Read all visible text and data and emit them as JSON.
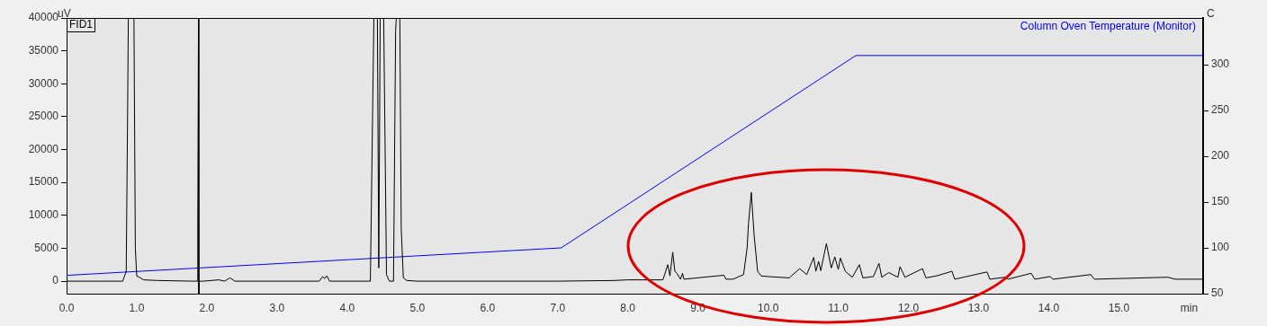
{
  "chart_data": {
    "type": "line",
    "ylabel": "uV",
    "y2label": "C",
    "xlim": [
      0,
      16.2
    ],
    "xticks": [
      {
        "value": 0,
        "label": "0.0"
      },
      {
        "value": 1,
        "label": "1.0"
      },
      {
        "value": 2,
        "label": "2.0"
      },
      {
        "value": 3,
        "label": "3.0"
      },
      {
        "value": 4,
        "label": "4.0"
      },
      {
        "value": 5,
        "label": "5.0"
      },
      {
        "value": 6,
        "label": "6.0"
      },
      {
        "value": 7,
        "label": "7.0"
      },
      {
        "value": 8,
        "label": "8.0"
      },
      {
        "value": 9,
        "label": "9.0"
      },
      {
        "value": 10,
        "label": "10.0"
      },
      {
        "value": 11,
        "label": "11.0"
      },
      {
        "value": 12,
        "label": "12.0"
      },
      {
        "value": 13,
        "label": "13.0"
      },
      {
        "value": 14,
        "label": "14.0"
      },
      {
        "value": 15,
        "label": "15.0"
      },
      {
        "value": 16,
        "label": "min"
      }
    ],
    "ylim": [
      -1900,
      40000
    ],
    "yticks": [
      0,
      5000,
      10000,
      15000,
      20000,
      25000,
      30000,
      35000,
      40000
    ],
    "y2lim": [
      50,
      351
    ],
    "y2ticks": [
      50,
      100,
      150,
      200,
      250,
      300
    ],
    "legend": false,
    "grid": false,
    "marker": "none",
    "series": [
      {
        "name": "FID1",
        "color": "#000000",
        "x": [
          0,
          0.8,
          0.85,
          0.87,
          0.88,
          0.96,
          0.98,
          1.0,
          1.05,
          1.1,
          1.3,
          1.8,
          1.86,
          1.87,
          1.88,
          1.885,
          1.89,
          1.95,
          2.17,
          2.25,
          2.33,
          2.4,
          3.6,
          3.65,
          3.68,
          3.71,
          3.75,
          4.33,
          4.36,
          4.38,
          4.43,
          4.45,
          4.47,
          4.52,
          4.56,
          4.6,
          4.66,
          4.69,
          4.7,
          4.75,
          4.77,
          4.8,
          4.85,
          5.0,
          6.4,
          7.0,
          7.8,
          8.0,
          8.5,
          8.57,
          8.6,
          8.64,
          8.67,
          8.7,
          8.75,
          8.78,
          8.8,
          9.37,
          9.4,
          9.5,
          9.65,
          9.7,
          9.72,
          9.76,
          9.8,
          9.85,
          9.9,
          10.0,
          10.3,
          10.45,
          10.55,
          10.65,
          10.68,
          10.72,
          10.75,
          10.83,
          10.9,
          10.95,
          11.0,
          11.03,
          11.1,
          11.2,
          11.3,
          11.35,
          11.5,
          11.58,
          11.62,
          11.72,
          11.85,
          11.88,
          11.95,
          12.2,
          12.25,
          12.4,
          12.62,
          12.66,
          13.12,
          13.16,
          13.38,
          13.42,
          13.75,
          13.8,
          14.02,
          14.06,
          14.6,
          14.65,
          15.0,
          15.7,
          15.8,
          16.2
        ],
        "values": [
          0,
          0,
          1500,
          26000,
          40000,
          40000,
          5000,
          800,
          500,
          200,
          100,
          0,
          0,
          8500,
          40000,
          -1900,
          0,
          0,
          200,
          0,
          500,
          0,
          0,
          700,
          400,
          800,
          0,
          0,
          24000,
          40000,
          40000,
          2000,
          40000,
          40000,
          1000,
          0,
          0,
          38000,
          40000,
          40000,
          8000,
          500,
          100,
          0,
          0,
          0,
          100,
          200,
          200,
          2500,
          800,
          4400,
          1500,
          1200,
          300,
          1200,
          300,
          900,
          300,
          300,
          1000,
          5000,
          8800,
          13500,
          7000,
          1500,
          800,
          700,
          500,
          1900,
          1000,
          3600,
          1500,
          3000,
          1600,
          5700,
          2000,
          3700,
          1800,
          3500,
          1500,
          600,
          2500,
          500,
          700,
          2700,
          600,
          1300,
          600,
          2200,
          600,
          1900,
          500,
          800,
          1500,
          300,
          1400,
          300,
          600,
          300,
          1200,
          300,
          700,
          300,
          1000,
          300,
          400,
          600,
          300,
          300
        ]
      },
      {
        "name": "Column Oven Temperature (Monitor)",
        "color": "#0000ff",
        "axis": "y2",
        "x": [
          0,
          7.05,
          11.25,
          16.2
        ],
        "values": [
          70,
          100,
          310,
          310
        ]
      }
    ]
  }
}
